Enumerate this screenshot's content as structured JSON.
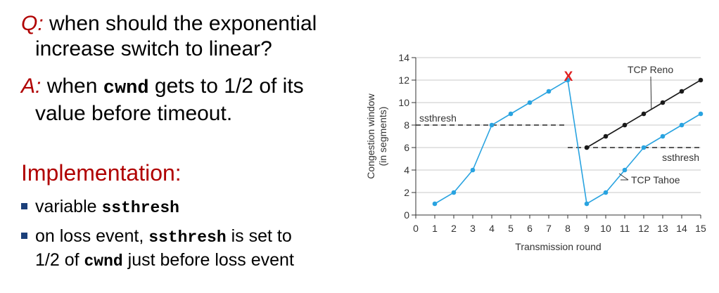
{
  "q": {
    "prefix": "Q:",
    "text": " when should the exponential",
    "text2": "increase switch to linear?"
  },
  "a": {
    "prefix": "A:",
    "text1": " when ",
    "code": "cwnd",
    "text2": " gets to 1/2 of its",
    "text3": "value before timeout."
  },
  "implementation": {
    "heading": "Implementation:"
  },
  "bullets": [
    {
      "pre": "variable ",
      "code": "ssthresh",
      "post": ""
    },
    {
      "pre": "on loss event, ",
      "code": "ssthresh",
      "post": " is set to",
      "line2_pre": "1/2 of ",
      "line2_code": "cwnd",
      "line2_post": " just before loss event"
    }
  ],
  "colors": {
    "accent": "#b00000",
    "bullet": "#1b3f7a",
    "tahoe": "#29a3e0",
    "reno": "#1a1a1a",
    "loss": "#e02020"
  },
  "chart_data": {
    "type": "line",
    "xlabel": "Transmission round",
    "ylabel": "Congestion window",
    "ylabel2": "(in segments)",
    "xlim": [
      0,
      15
    ],
    "ylim": [
      0,
      14
    ],
    "x_ticks": [
      "0",
      "1",
      "2",
      "3",
      "4",
      "5",
      "6",
      "7",
      "8",
      "9",
      "10",
      "11",
      "12",
      "13",
      "14",
      "15"
    ],
    "y_ticks": [
      "0",
      "2",
      "4",
      "6",
      "8",
      "10",
      "12",
      "14"
    ],
    "series": [
      {
        "name": "TCP Tahoe",
        "x": [
          1,
          2,
          3,
          4,
          5,
          6,
          7,
          8,
          9,
          10,
          11,
          12,
          13,
          14,
          15
        ],
        "y": [
          1,
          2,
          4,
          8,
          9,
          10,
          11,
          12,
          1,
          2,
          4,
          6,
          7,
          8,
          9
        ]
      },
      {
        "name": "TCP Reno",
        "x": [
          9,
          10,
          11,
          12,
          13,
          14,
          15
        ],
        "y": [
          6,
          7,
          8,
          9,
          10,
          11,
          12
        ]
      }
    ],
    "ssthresh_lines": [
      {
        "label": "ssthresh",
        "value": 8,
        "x_from": 0,
        "x_to": 8
      },
      {
        "label": "ssthresh",
        "value": 6,
        "x_from": 8,
        "x_to": 15
      }
    ],
    "loss_marker": {
      "symbol": "X",
      "x": 8,
      "y": 12
    }
  }
}
